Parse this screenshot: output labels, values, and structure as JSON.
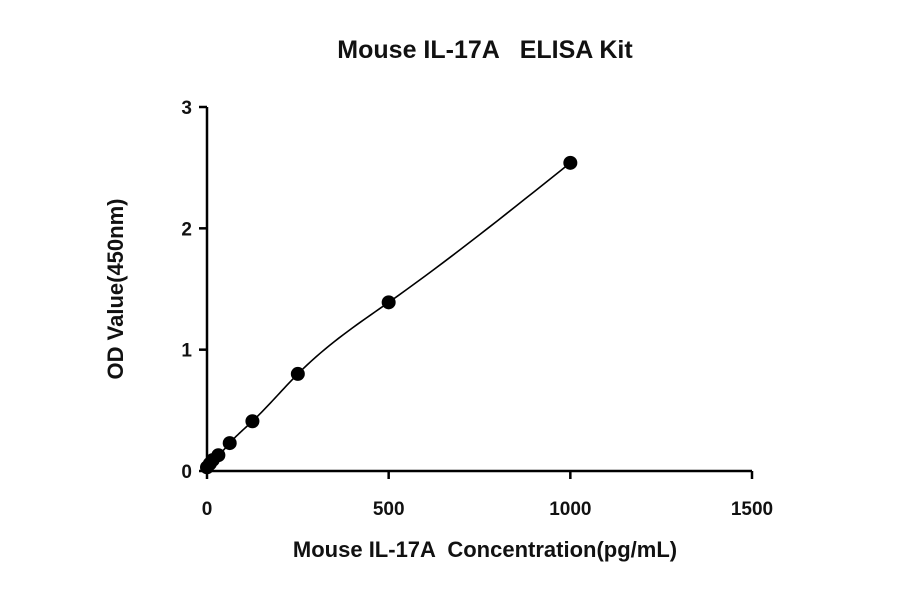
{
  "chart_data": {
    "type": "scatter",
    "title": "Mouse IL-17A   ELISA Kit",
    "xlabel": "Mouse IL-17A  Concentration(pg/mL)",
    "ylabel": "OD Value(450nm)",
    "xlim": [
      0,
      1500
    ],
    "ylim": [
      0,
      3
    ],
    "xticks": [
      "0",
      "500",
      "1000",
      "1500"
    ],
    "yticks": [
      "0",
      "1",
      "2",
      "3"
    ],
    "grid": false,
    "legend": "none",
    "fit_curve": true,
    "series": [
      {
        "x": [
          0,
          7.8,
          15.6,
          31.25,
          62.5,
          125,
          250,
          500,
          1000
        ],
        "y": [
          0.03,
          0.06,
          0.09,
          0.13,
          0.23,
          0.41,
          0.8,
          1.39,
          2.54
        ]
      }
    ]
  },
  "colors": {
    "marker": "#000000",
    "axis": "#000000",
    "curve": "#000000"
  }
}
